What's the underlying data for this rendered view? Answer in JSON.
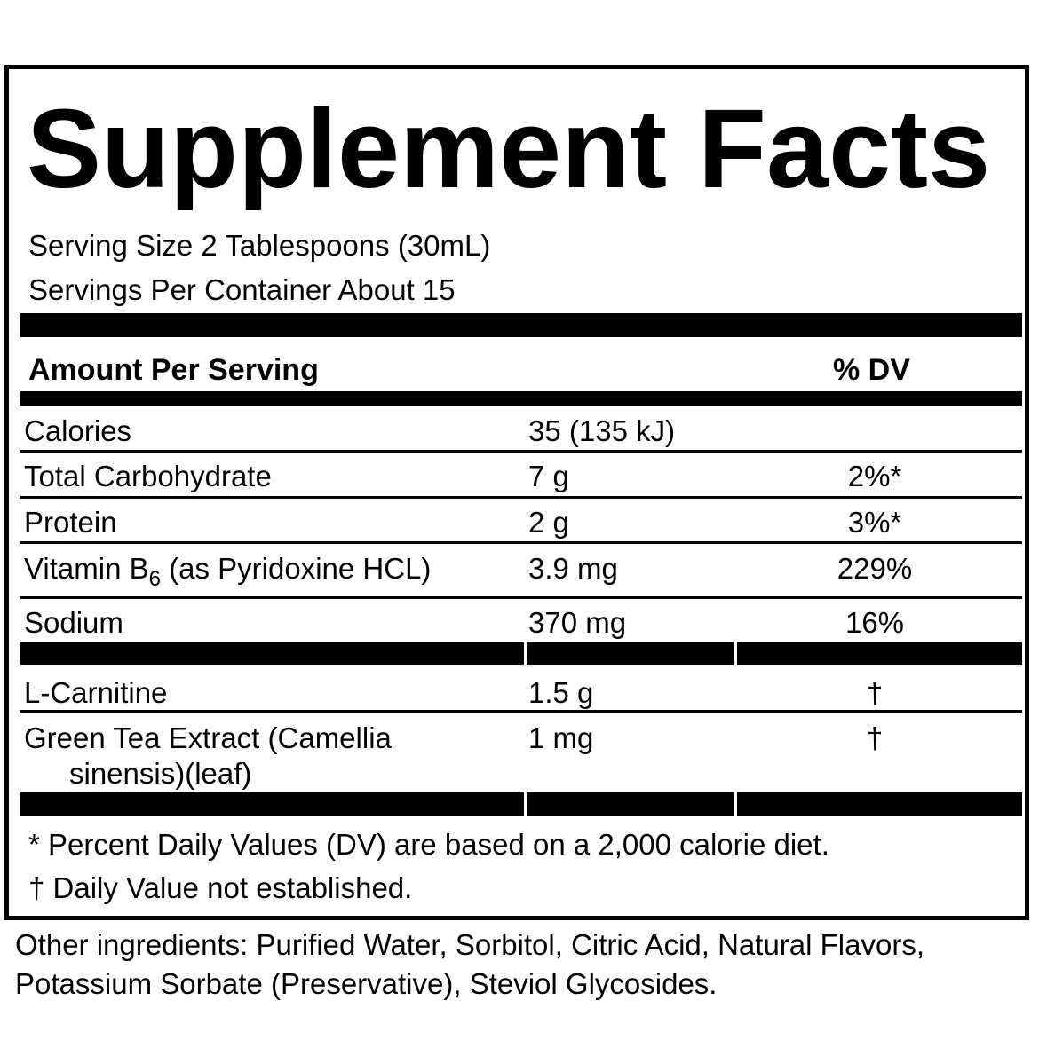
{
  "title": "Supplement Facts",
  "serving_size": "Serving Size 2 Tablespoons (30mL)",
  "servings_per_container": "Servings Per Container About 15",
  "header": {
    "amount": "Amount Per Serving",
    "dv": "% DV"
  },
  "rows": [
    {
      "name": "Calories",
      "amount": "35 (135 kJ)",
      "dv": ""
    },
    {
      "name": "Total Carbohydrate",
      "amount": "7 g",
      "dv": "2%*"
    },
    {
      "name": "Protein",
      "amount": "2 g",
      "dv": "3%*"
    },
    {
      "name_pre": "Vitamin B",
      "name_sub": "6",
      "name_post": " (as Pyridoxine HCL)",
      "amount": "3.9 mg",
      "dv": "229%"
    },
    {
      "name": "Sodium",
      "amount": "370 mg",
      "dv": "16%"
    }
  ],
  "blend_rows": [
    {
      "name": "L-Carnitine",
      "amount": "1.5 g",
      "dv": "†"
    },
    {
      "name": "Green Tea Extract (Camellia",
      "name_cont": "sinensis)(leaf)",
      "amount": "1 mg",
      "dv": "†"
    }
  ],
  "footnotes": [
    "* Percent Daily Values (DV) are based on a 2,000 calorie diet.",
    "† Daily Value not established."
  ],
  "other_ingredients": "Other ingredients: Purified Water, Sorbitol, Citric Acid, Natural Flavors, Potassium Sorbate (Preservative), Steviol Glycosides."
}
